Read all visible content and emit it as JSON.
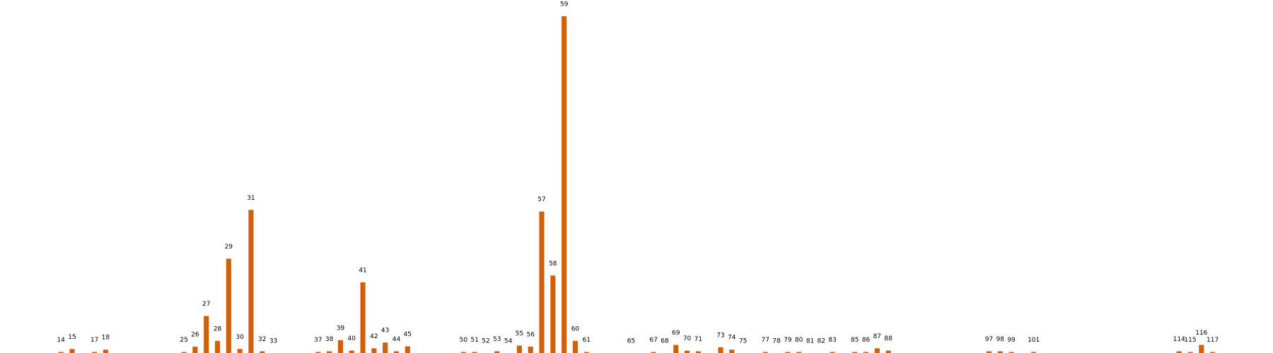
{
  "chart_data": {
    "type": "bar",
    "x": [
      14,
      15,
      17,
      18,
      25,
      26,
      27,
      28,
      29,
      30,
      31,
      32,
      33,
      37,
      38,
      39,
      40,
      41,
      42,
      43,
      44,
      45,
      50,
      51,
      52,
      53,
      54,
      55,
      56,
      57,
      58,
      59,
      60,
      61,
      65,
      67,
      68,
      69,
      70,
      71,
      73,
      74,
      75,
      77,
      78,
      79,
      80,
      81,
      82,
      83,
      85,
      86,
      87,
      88,
      97,
      98,
      99,
      101,
      114,
      115,
      116,
      117
    ],
    "values": [
      0.3,
      1.2,
      0.3,
      1,
      0.3,
      1.9,
      11,
      3.6,
      28,
      1.2,
      42.5,
      0.5,
      0,
      0.3,
      0.5,
      3.8,
      0.7,
      21,
      1.4,
      3.1,
      0.5,
      2,
      0.3,
      0.3,
      0,
      0.5,
      0,
      2.2,
      1.9,
      42,
      23,
      100,
      3.6,
      0.3,
      0,
      0.3,
      0,
      2.4,
      0.7,
      0.5,
      1.7,
      1,
      0,
      0.3,
      0,
      0.3,
      0.3,
      0,
      0,
      0.3,
      0.3,
      0.3,
      1.4,
      0.7,
      0.5,
      0.5,
      0.3,
      0.3,
      0.5,
      0.3,
      2.4,
      0.3
    ],
    "color": "#d1600c",
    "xlim": [
      8.55,
      122.4
    ],
    "ylim": [
      0,
      100
    ]
  }
}
